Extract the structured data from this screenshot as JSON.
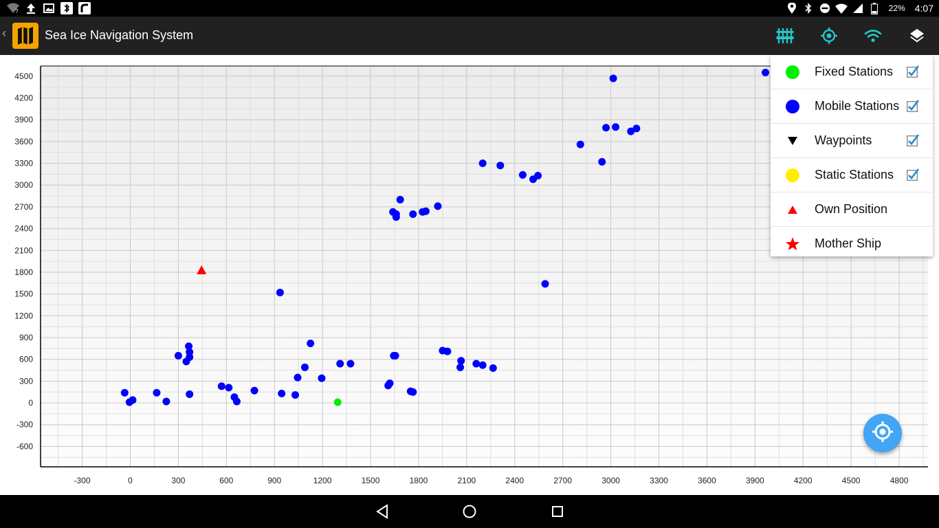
{
  "status_bar": {
    "left_icons": [
      "wifi-question-icon",
      "upload-icon",
      "image-icon",
      "bluetooth-icon",
      "app-icon"
    ],
    "right_icons": [
      "location-icon",
      "bluetooth-icon",
      "do-not-disturb-icon",
      "wifi-icon",
      "signal-icon",
      "battery-icon"
    ],
    "battery": "22%",
    "time": "4:07"
  },
  "app_bar": {
    "title": "Sea Ice Navigation System",
    "actions": [
      "equalizer-icon",
      "gps-target-icon",
      "wifi-icon",
      "layers-icon"
    ],
    "accent": "#26c6c6"
  },
  "layers_menu": {
    "items": [
      {
        "label": "Fixed Stations",
        "symbol": "circle",
        "color": "#00ee00",
        "checked": true
      },
      {
        "label": "Mobile Stations",
        "symbol": "circle",
        "color": "#0000ff",
        "checked": true
      },
      {
        "label": "Waypoints",
        "symbol": "triangle-down",
        "color": "#000000",
        "checked": true
      },
      {
        "label": "Static Stations",
        "symbol": "circle",
        "color": "#ffee00",
        "checked": true
      },
      {
        "label": "Own Position",
        "symbol": "triangle-up",
        "color": "#ff0000",
        "checked": null
      },
      {
        "label": "Mother Ship",
        "symbol": "star",
        "color": "#ff0000",
        "checked": null
      }
    ]
  },
  "chart_data": {
    "type": "scatter",
    "xlim": [
      -560,
      4980
    ],
    "ylim": [
      -880,
      4640
    ],
    "x_ticks": [
      -300,
      0,
      300,
      600,
      900,
      1200,
      1500,
      1800,
      2100,
      2400,
      2700,
      3000,
      3300,
      3600,
      3900,
      4200,
      4500,
      4800
    ],
    "y_ticks": [
      -600,
      -300,
      0,
      300,
      600,
      900,
      1200,
      1500,
      1800,
      2100,
      2400,
      2700,
      3000,
      3300,
      3600,
      3900,
      4200,
      4500
    ],
    "grid": true,
    "series": [
      {
        "name": "Mobile Stations",
        "color": "#0000ff",
        "marker": "circle",
        "points": [
          [
            -35,
            140
          ],
          [
            -5,
            10
          ],
          [
            15,
            40
          ],
          [
            165,
            140
          ],
          [
            225,
            20
          ],
          [
            300,
            650
          ],
          [
            350,
            570
          ],
          [
            365,
            780
          ],
          [
            370,
            700
          ],
          [
            370,
            630
          ],
          [
            370,
            120
          ],
          [
            570,
            230
          ],
          [
            615,
            210
          ],
          [
            650,
            80
          ],
          [
            665,
            20
          ],
          [
            775,
            170
          ],
          [
            935,
            1520
          ],
          [
            945,
            130
          ],
          [
            1030,
            110
          ],
          [
            1045,
            350
          ],
          [
            1090,
            490
          ],
          [
            1125,
            820
          ],
          [
            1195,
            340
          ],
          [
            1310,
            540
          ],
          [
            1375,
            540
          ],
          [
            1610,
            240
          ],
          [
            1620,
            270
          ],
          [
            1640,
            2630
          ],
          [
            1645,
            650
          ],
          [
            1655,
            650
          ],
          [
            1660,
            2600
          ],
          [
            1660,
            2560
          ],
          [
            1685,
            2800
          ],
          [
            1750,
            160
          ],
          [
            1765,
            150
          ],
          [
            1765,
            2600
          ],
          [
            1825,
            2630
          ],
          [
            1845,
            2640
          ],
          [
            1920,
            2710
          ],
          [
            1950,
            720
          ],
          [
            1980,
            710
          ],
          [
            2060,
            490
          ],
          [
            2065,
            580
          ],
          [
            2160,
            540
          ],
          [
            2200,
            520
          ],
          [
            2200,
            3300
          ],
          [
            2265,
            480
          ],
          [
            2310,
            3270
          ],
          [
            2450,
            3140
          ],
          [
            2515,
            3080
          ],
          [
            2545,
            3130
          ],
          [
            2590,
            1640
          ],
          [
            2810,
            3560
          ],
          [
            2945,
            3320
          ],
          [
            2970,
            3790
          ],
          [
            3015,
            4470
          ],
          [
            3030,
            3800
          ],
          [
            3125,
            3740
          ],
          [
            3160,
            3780
          ],
          [
            3965,
            4550
          ]
        ]
      },
      {
        "name": "Fixed Stations",
        "color": "#00ee00",
        "marker": "circle",
        "points": [
          [
            1295,
            10
          ]
        ]
      },
      {
        "name": "Own Position",
        "color": "#ff0000",
        "marker": "triangle-up",
        "points": [
          [
            445,
            1820
          ]
        ]
      }
    ]
  },
  "fab": {
    "icon": "my-location-icon",
    "color": "#42a5f5"
  },
  "nav_bar": {
    "buttons": [
      "back-icon",
      "home-icon",
      "recents-icon"
    ]
  }
}
